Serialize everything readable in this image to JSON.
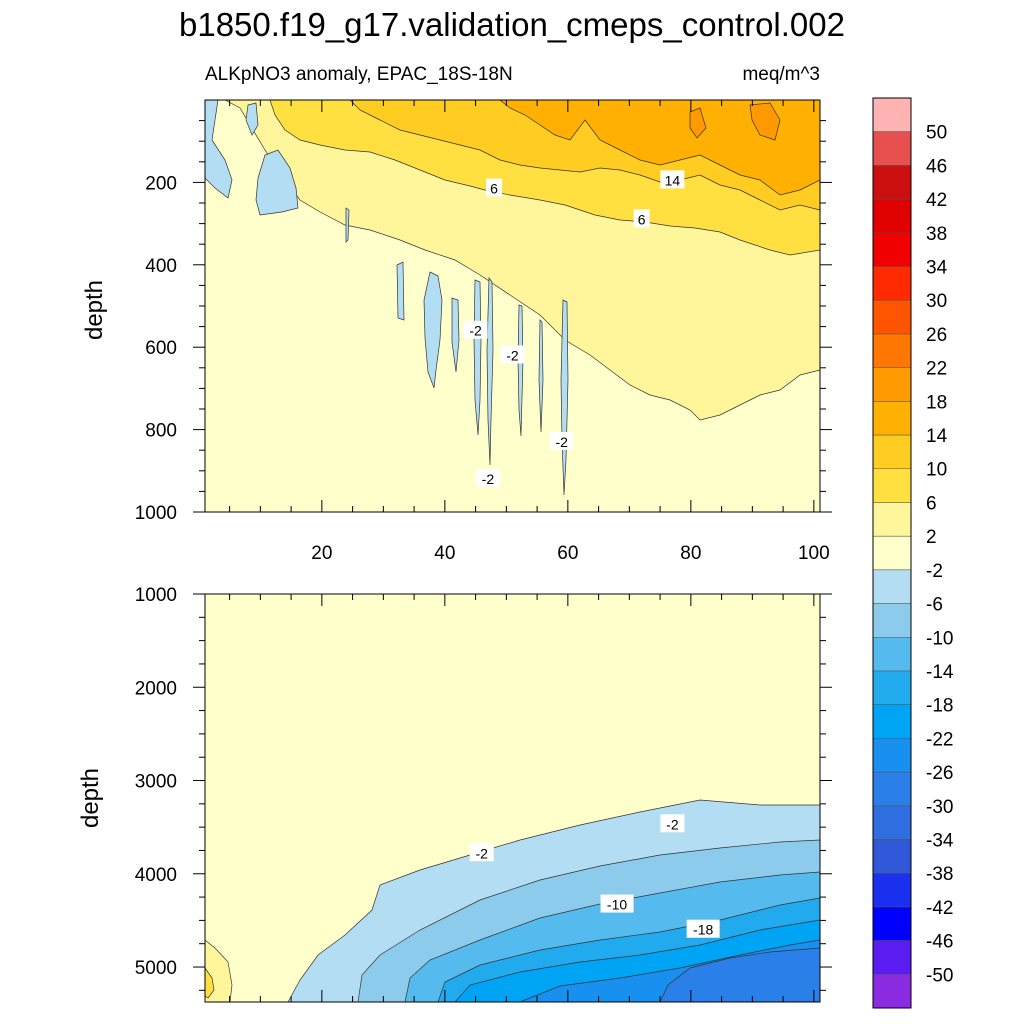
{
  "chart_data": {
    "type": "contour",
    "title": "b1850.f19_g17.validation_cmeps_control.002",
    "subtitle_left": "ALKpNO3 anomaly, EPAC_18S-18N",
    "subtitle_right": "meq/m^3",
    "colorbar": {
      "levels": [
        50,
        46,
        42,
        38,
        34,
        30,
        26,
        22,
        18,
        14,
        10,
        6,
        2,
        -2,
        -6,
        -10,
        -14,
        -18,
        -22,
        -26,
        -30,
        -34,
        -38,
        -42,
        -46,
        -50
      ],
      "level_labels": [
        "50",
        "46",
        "42",
        "38",
        "34",
        "30",
        "26",
        "22",
        "18",
        "14",
        "10",
        "6",
        "2",
        "-2",
        "-6",
        "-10",
        "-14",
        "-18",
        "-22",
        "-26",
        "-30",
        "-34",
        "-38",
        "-42",
        "-46",
        "-50"
      ],
      "colors": [
        "#ffb3b3",
        "#e85050",
        "#cc1010",
        "#e00000",
        "#f00000",
        "#ff2a00",
        "#ff5500",
        "#ff7700",
        "#ff9900",
        "#ffb000",
        "#ffcc22",
        "#ffe040",
        "#fff59a",
        "#ffffcc",
        "#b3ddf2",
        "#8ccbec",
        "#55bbee",
        "#22aaee",
        "#00a4f4",
        "#1890f0",
        "#2a80e8",
        "#2e6ee0",
        "#3058d8",
        "#1a30ee",
        "#0000ff",
        "#5a1cf0",
        "#8a2be2"
      ]
    },
    "panels": [
      {
        "name": "upper",
        "ylabel": "depth",
        "xlim": [
          1,
          101
        ],
        "ylim": [
          0,
          1000
        ],
        "x_ticks": [
          20,
          40,
          60,
          80,
          100
        ],
        "x_tick_labels": [
          "20",
          "40",
          "60",
          "80",
          "100"
        ],
        "y_ticks": [
          200,
          400,
          600,
          800,
          1000
        ],
        "y_tick_labels": [
          "200",
          "400",
          "600",
          "800",
          "1000"
        ],
        "contour_labels": [
          {
            "text": "6",
            "x": 48,
            "y": 215
          },
          {
            "text": "14",
            "x": 77,
            "y": 195
          },
          {
            "text": "6",
            "x": 72,
            "y": 290
          },
          {
            "text": "-2",
            "x": 45,
            "y": 560
          },
          {
            "text": "-2",
            "x": 51,
            "y": 620
          },
          {
            "text": "-2",
            "x": 59,
            "y": 830
          },
          {
            "text": "-2",
            "x": 47,
            "y": 920
          }
        ]
      },
      {
        "name": "lower",
        "ylabel": "depth",
        "xlim": [
          1,
          101
        ],
        "ylim": [
          1000,
          5375
        ],
        "y_ticks": [
          1000,
          2000,
          3000,
          4000,
          5000
        ],
        "y_tick_labels": [
          "1000",
          "2000",
          "3000",
          "4000",
          "5000"
        ],
        "contour_labels": [
          {
            "text": "-2",
            "x": 77,
            "y": 3470
          },
          {
            "text": "-2",
            "x": 46,
            "y": 3780
          },
          {
            "text": "-10",
            "x": 68,
            "y": 4330
          },
          {
            "text": "-18",
            "x": 82,
            "y": 4600
          }
        ]
      }
    ]
  }
}
